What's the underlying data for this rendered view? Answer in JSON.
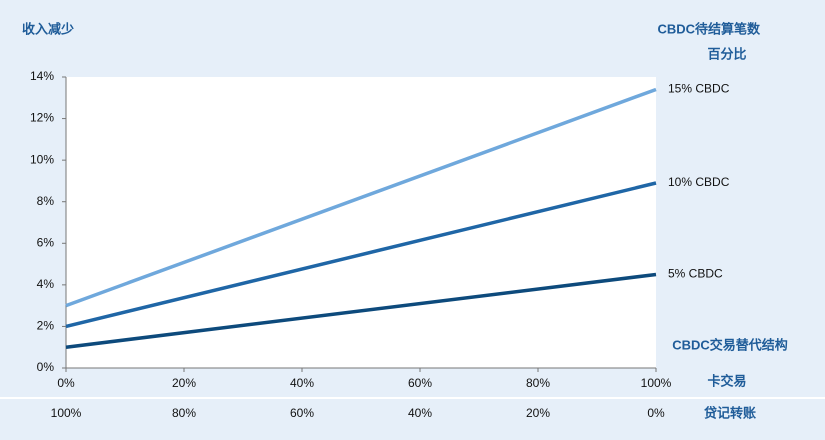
{
  "chart_data": {
    "type": "line",
    "y_label": "收入减少",
    "legend_title": "CBDC待结算笔数",
    "legend_subtitle": "百分比",
    "x_label": "CBDC交易替代结构",
    "xticks_label": "卡交易",
    "x2ticks_label": "贷记转账",
    "x": [
      0,
      100
    ],
    "series": [
      {
        "name": "15% CBDC",
        "color": "#6fa8dc",
        "values": [
          3.0,
          13.4
        ]
      },
      {
        "name": "10% CBDC",
        "color": "#1f66a6",
        "values": [
          2.0,
          8.9
        ]
      },
      {
        "name": "5% CBDC",
        "color": "#0d4a7c",
        "values": [
          1.0,
          4.5
        ]
      }
    ],
    "xlim": [
      0,
      100
    ],
    "xticks": [
      {
        "value": 0,
        "label": "0%"
      },
      {
        "value": 20,
        "label": "20%"
      },
      {
        "value": 40,
        "label": "40%"
      },
      {
        "value": 60,
        "label": "60%"
      },
      {
        "value": 80,
        "label": "80%"
      },
      {
        "value": 100,
        "label": "100%"
      }
    ],
    "x2lim": [
      100,
      0
    ],
    "x2ticks": [
      {
        "value": 100,
        "label": "100%"
      },
      {
        "value": 80,
        "label": "80%"
      },
      {
        "value": 60,
        "label": "60%"
      },
      {
        "value": 40,
        "label": "40%"
      },
      {
        "value": 20,
        "label": "20%"
      },
      {
        "value": 0,
        "label": "0%"
      }
    ],
    "ylim": [
      0,
      14
    ],
    "yticks": [
      {
        "value": 0,
        "label": "0%"
      },
      {
        "value": 2,
        "label": "2%"
      },
      {
        "value": 4,
        "label": "4%"
      },
      {
        "value": 6,
        "label": "6%"
      },
      {
        "value": 8,
        "label": "8%"
      },
      {
        "value": 10,
        "label": "10%"
      },
      {
        "value": 12,
        "label": "12%"
      },
      {
        "value": 14,
        "label": "14%"
      }
    ]
  }
}
